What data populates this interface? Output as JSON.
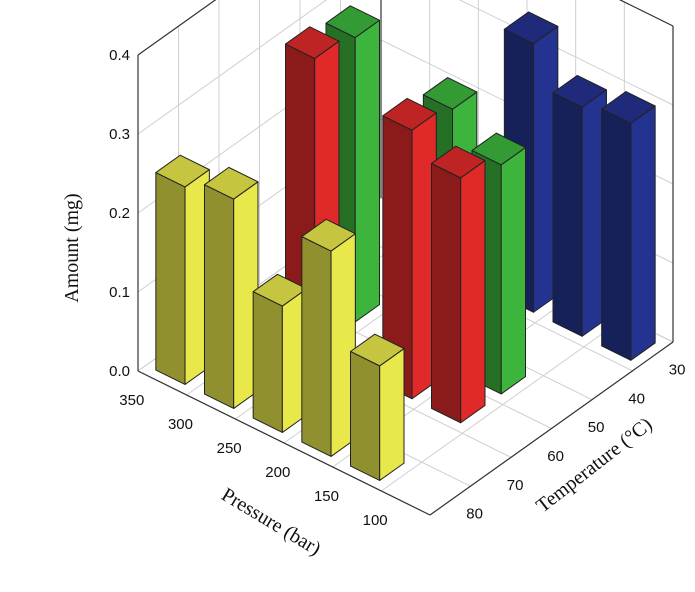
{
  "chart_data": {
    "type": "bar3d",
    "xlabel": "Pressure (bar)",
    "ylabel": "Temperature (°C)",
    "zlabel": "Amount (mg)",
    "pressure_ticks": [
      "350",
      "300",
      "250",
      "200",
      "150",
      "100"
    ],
    "temperature_ticks": [
      "30",
      "40",
      "50",
      "60",
      "70",
      "80"
    ],
    "amount_ticks": [
      "0.0",
      "0.1",
      "0.2",
      "0.3",
      "0.4"
    ],
    "zlim": [
      0,
      0.4
    ],
    "grid": true,
    "bars": [
      {
        "pressure": 350,
        "temperature": 80,
        "amount": 0.25,
        "color": "#e8e84a"
      },
      {
        "pressure": 300,
        "temperature": 80,
        "amount": 0.265,
        "color": "#e8e84a"
      },
      {
        "pressure": 250,
        "temperature": 80,
        "amount": 0.16,
        "color": "#e8e84a"
      },
      {
        "pressure": 200,
        "temperature": 80,
        "amount": 0.26,
        "color": "#e8e84a"
      },
      {
        "pressure": 150,
        "temperature": 80,
        "amount": 0.145,
        "color": "#e8e84a"
      },
      {
        "pressure": 300,
        "temperature": 60,
        "amount": 0.37,
        "color": "#e02a2a"
      },
      {
        "pressure": 200,
        "temperature": 60,
        "amount": 0.34,
        "color": "#e02a2a"
      },
      {
        "pressure": 150,
        "temperature": 60,
        "amount": 0.31,
        "color": "#e02a2a"
      },
      {
        "pressure": 300,
        "temperature": 50,
        "amount": 0.36,
        "color": "#3db53d"
      },
      {
        "pressure": 200,
        "temperature": 50,
        "amount": 0.33,
        "color": "#3db53d"
      },
      {
        "pressure": 150,
        "temperature": 50,
        "amount": 0.29,
        "color": "#3db53d"
      },
      {
        "pressure": 200,
        "temperature": 30,
        "amount": 0.34,
        "color": "#24338f"
      },
      {
        "pressure": 150,
        "temperature": 30,
        "amount": 0.29,
        "color": "#24338f"
      },
      {
        "pressure": 100,
        "temperature": 30,
        "amount": 0.3,
        "color": "#24338f"
      }
    ]
  }
}
